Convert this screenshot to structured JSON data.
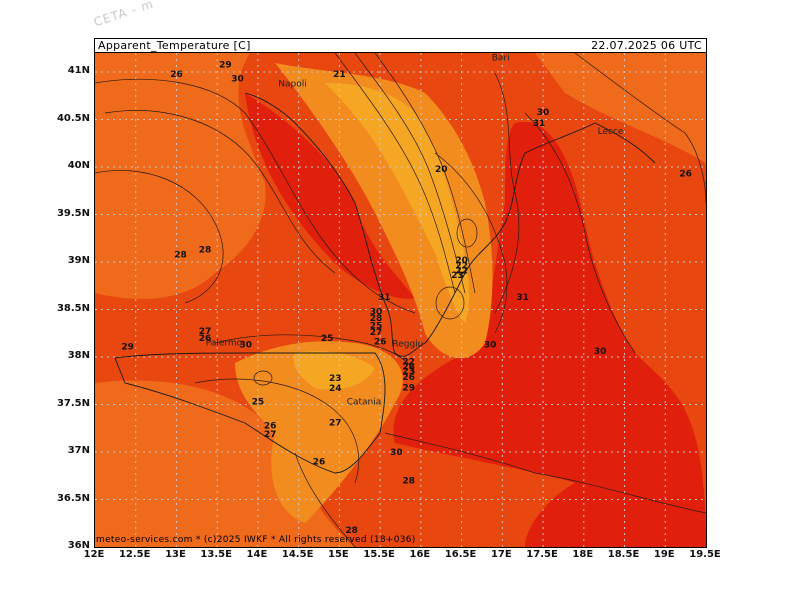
{
  "watermark": "CETA - m",
  "header": {
    "variable": "Apparent_Temperature [C]",
    "datetime": "22.07.2025 06 UTC"
  },
  "footer": "meteo-services.com * (c)2025 IWKF * All rights reserved (18+036)",
  "map": {
    "colors": {
      "yellow": "#f5a623",
      "orange_light": "#f28c1e",
      "orange": "#ef6a1a",
      "red_orange": "#e8470f",
      "red": "#e0200d",
      "grid": "#c8c8c8"
    },
    "lon_labels": [
      "12E",
      "12.5E",
      "13E",
      "13.5E",
      "14E",
      "14.5E",
      "15E",
      "15.5E",
      "16E",
      "16.5E",
      "17E",
      "17.5E",
      "18E",
      "18.5E",
      "19E",
      "19.5E"
    ],
    "lat_labels": [
      "41N",
      "40.5N",
      "40N",
      "39.5N",
      "39N",
      "38.5N",
      "38N",
      "37.5N",
      "37N",
      "36.5N",
      "36N"
    ],
    "cities": [
      {
        "name": "Napoli",
        "lon": 14.25,
        "lat": 40.85
      },
      {
        "name": "Bari",
        "lon": 16.87,
        "lat": 41.12
      },
      {
        "name": "Lecce",
        "lon": 18.17,
        "lat": 40.35
      },
      {
        "name": "Palermo",
        "lon": 13.36,
        "lat": 38.12
      },
      {
        "name": "Catania",
        "lon": 15.09,
        "lat": 37.5
      },
      {
        "name": "Reggio",
        "lon": 15.65,
        "lat": 38.11
      }
    ],
    "contour_labels": [
      {
        "t": "29",
        "lon": 13.6,
        "lat": 41.05
      },
      {
        "t": "26",
        "lon": 13.0,
        "lat": 40.95
      },
      {
        "t": "30",
        "lon": 13.75,
        "lat": 40.9
      },
      {
        "t": "21",
        "lon": 15.0,
        "lat": 40.95
      },
      {
        "t": "30",
        "lon": 17.5,
        "lat": 40.55
      },
      {
        "t": "31",
        "lon": 17.45,
        "lat": 40.43
      },
      {
        "t": "20",
        "lon": 16.25,
        "lat": 39.95
      },
      {
        "t": "26",
        "lon": 19.25,
        "lat": 39.9
      },
      {
        "t": "28",
        "lon": 13.35,
        "lat": 39.1
      },
      {
        "t": "28",
        "lon": 13.05,
        "lat": 39.05
      },
      {
        "t": "20",
        "lon": 16.5,
        "lat": 38.99
      },
      {
        "t": "22",
        "lon": 16.5,
        "lat": 38.93
      },
      {
        "t": "22",
        "lon": 16.5,
        "lat": 38.88
      },
      {
        "t": "23",
        "lon": 16.45,
        "lat": 38.83
      },
      {
        "t": "31",
        "lon": 15.55,
        "lat": 38.6
      },
      {
        "t": "31",
        "lon": 17.25,
        "lat": 38.6
      },
      {
        "t": "30",
        "lon": 15.45,
        "lat": 38.45
      },
      {
        "t": "28",
        "lon": 15.45,
        "lat": 38.38
      },
      {
        "t": "25",
        "lon": 15.45,
        "lat": 38.3
      },
      {
        "t": "27",
        "lon": 15.45,
        "lat": 38.23
      },
      {
        "t": "27",
        "lon": 13.35,
        "lat": 38.24
      },
      {
        "t": "26",
        "lon": 13.35,
        "lat": 38.17
      },
      {
        "t": "25",
        "lon": 14.85,
        "lat": 38.17
      },
      {
        "t": "26",
        "lon": 15.5,
        "lat": 38.13
      },
      {
        "t": "30",
        "lon": 13.85,
        "lat": 38.1
      },
      {
        "t": "29",
        "lon": 12.4,
        "lat": 38.08
      },
      {
        "t": "30",
        "lon": 16.85,
        "lat": 38.1
      },
      {
        "t": "30",
        "lon": 18.2,
        "lat": 38.03
      },
      {
        "t": "22",
        "lon": 15.85,
        "lat": 37.92
      },
      {
        "t": "28",
        "lon": 15.85,
        "lat": 37.87
      },
      {
        "t": "23",
        "lon": 15.85,
        "lat": 37.82
      },
      {
        "t": "26",
        "lon": 15.85,
        "lat": 37.76
      },
      {
        "t": "23",
        "lon": 14.95,
        "lat": 37.75
      },
      {
        "t": "24",
        "lon": 14.95,
        "lat": 37.64
      },
      {
        "t": "29",
        "lon": 15.85,
        "lat": 37.65
      },
      {
        "t": "25",
        "lon": 14.0,
        "lat": 37.5
      },
      {
        "t": "27",
        "lon": 14.95,
        "lat": 37.28
      },
      {
        "t": "26",
        "lon": 14.15,
        "lat": 37.25
      },
      {
        "t": "27",
        "lon": 14.15,
        "lat": 37.16
      },
      {
        "t": "30",
        "lon": 15.7,
        "lat": 36.97
      },
      {
        "t": "26",
        "lon": 14.75,
        "lat": 36.87
      },
      {
        "t": "28",
        "lon": 15.85,
        "lat": 36.67
      },
      {
        "t": "28",
        "lon": 15.15,
        "lat": 36.15
      }
    ]
  }
}
